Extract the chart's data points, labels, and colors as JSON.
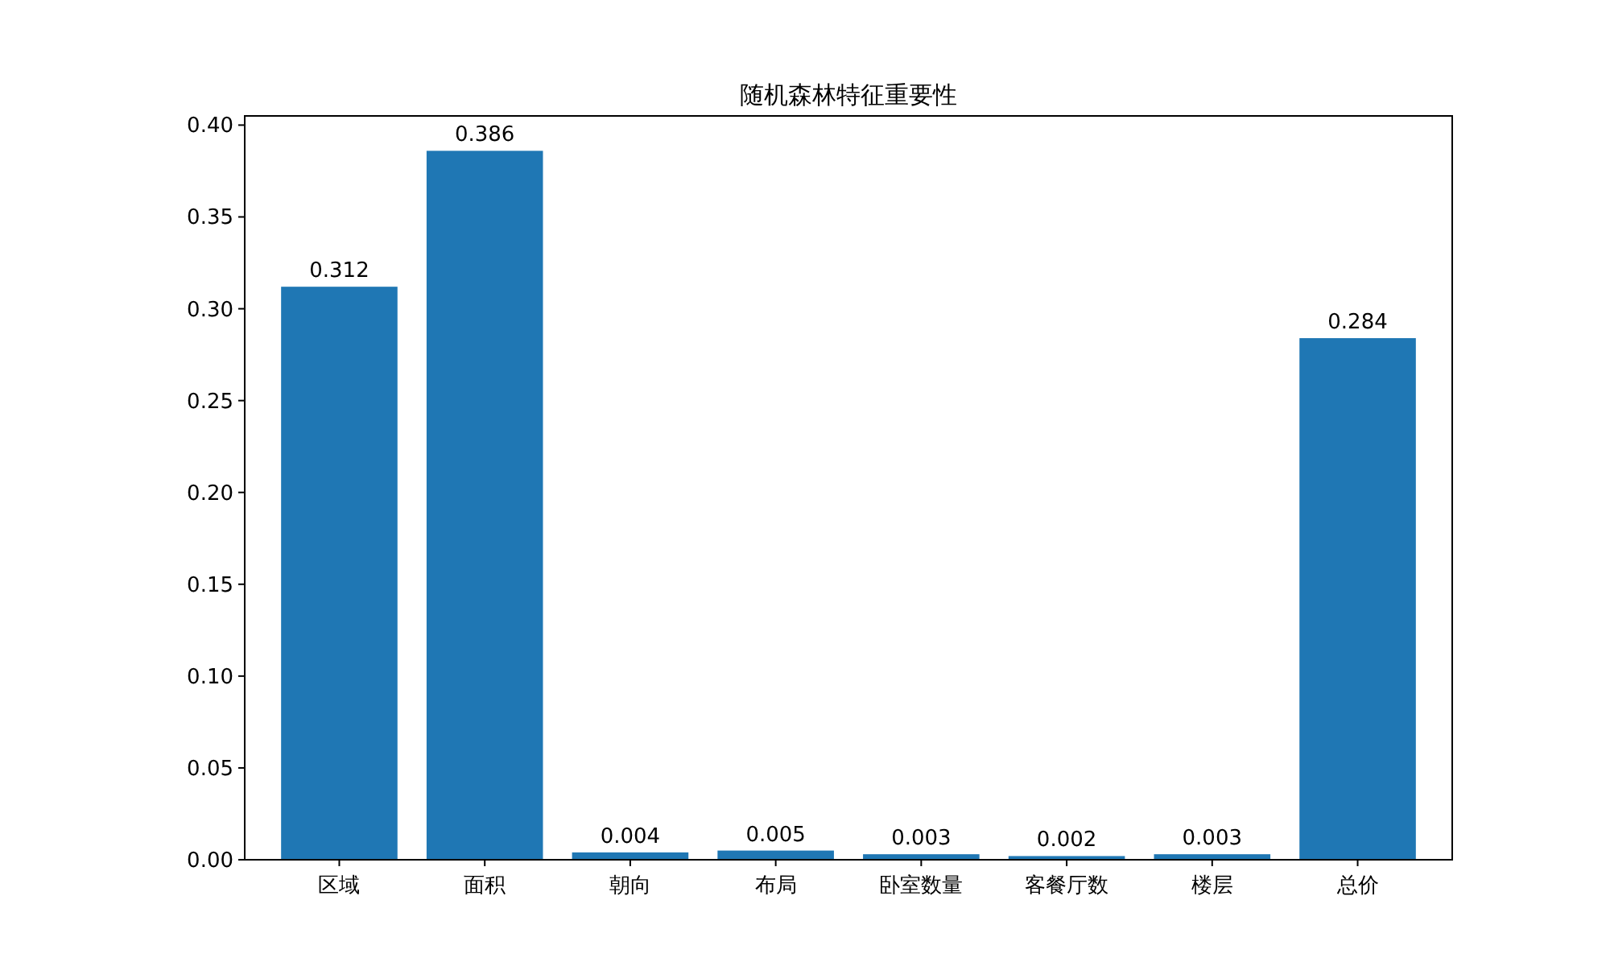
{
  "chart_data": {
    "type": "bar",
    "title": "随机森林特征重要性",
    "categories": [
      "区域",
      "面积",
      "朝向",
      "布局",
      "卧室数量",
      "客餐厅数",
      "楼层",
      "总价"
    ],
    "values": [
      0.312,
      0.386,
      0.004,
      0.005,
      0.003,
      0.002,
      0.003,
      0.284
    ],
    "color": "#1f77b4",
    "ylim": [
      0,
      0.405
    ],
    "yticks": [
      {
        "value": 0,
        "label": "0.00"
      },
      {
        "value": 0.05,
        "label": "0.05"
      },
      {
        "value": 0.1,
        "label": "0.10"
      },
      {
        "value": 0.15,
        "label": "0.15"
      },
      {
        "value": 0.2,
        "label": "0.20"
      },
      {
        "value": 0.25,
        "label": "0.25"
      },
      {
        "value": 0.3,
        "label": "0.30"
      },
      {
        "value": 0.35,
        "label": "0.35"
      },
      {
        "value": 0.4,
        "label": "0.40"
      }
    ],
    "data_labels": true,
    "grid": false
  }
}
